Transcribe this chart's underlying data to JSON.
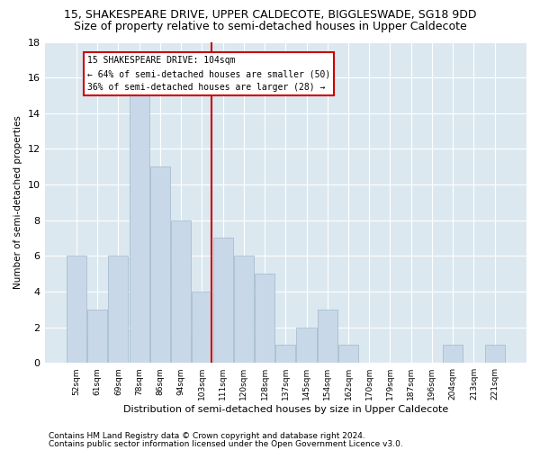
{
  "title": "15, SHAKESPEARE DRIVE, UPPER CALDECOTE, BIGGLESWADE, SG18 9DD",
  "subtitle": "Size of property relative to semi-detached houses in Upper Caldecote",
  "xlabel": "Distribution of semi-detached houses by size in Upper Caldecote",
  "ylabel": "Number of semi-detached properties",
  "footnote1": "Contains HM Land Registry data © Crown copyright and database right 2024.",
  "footnote2": "Contains public sector information licensed under the Open Government Licence v3.0.",
  "categories": [
    "52sqm",
    "61sqm",
    "69sqm",
    "78sqm",
    "86sqm",
    "94sqm",
    "103sqm",
    "111sqm",
    "120sqm",
    "128sqm",
    "137sqm",
    "145sqm",
    "154sqm",
    "162sqm",
    "170sqm",
    "179sqm",
    "187sqm",
    "196sqm",
    "204sqm",
    "213sqm",
    "221sqm"
  ],
  "values": [
    6,
    3,
    6,
    15,
    11,
    8,
    4,
    7,
    6,
    5,
    1,
    2,
    3,
    1,
    0,
    0,
    0,
    0,
    1,
    0,
    1
  ],
  "bar_color": "#c8d8e8",
  "bar_edge_color": "#a0b8cc",
  "vline_index": 6,
  "property_size": "104sqm",
  "property_address": "15 SHAKESPEARE DRIVE",
  "pct_smaller": 64,
  "count_smaller": 50,
  "pct_larger": 36,
  "count_larger": 28,
  "ylim": [
    0,
    18
  ],
  "yticks": [
    0,
    2,
    4,
    6,
    8,
    10,
    12,
    14,
    16,
    18
  ],
  "annotation_box_color": "#cc0000",
  "background_color": "#dce8f0",
  "title_fontsize": 9,
  "subtitle_fontsize": 9,
  "footnote_fontsize": 6.5
}
